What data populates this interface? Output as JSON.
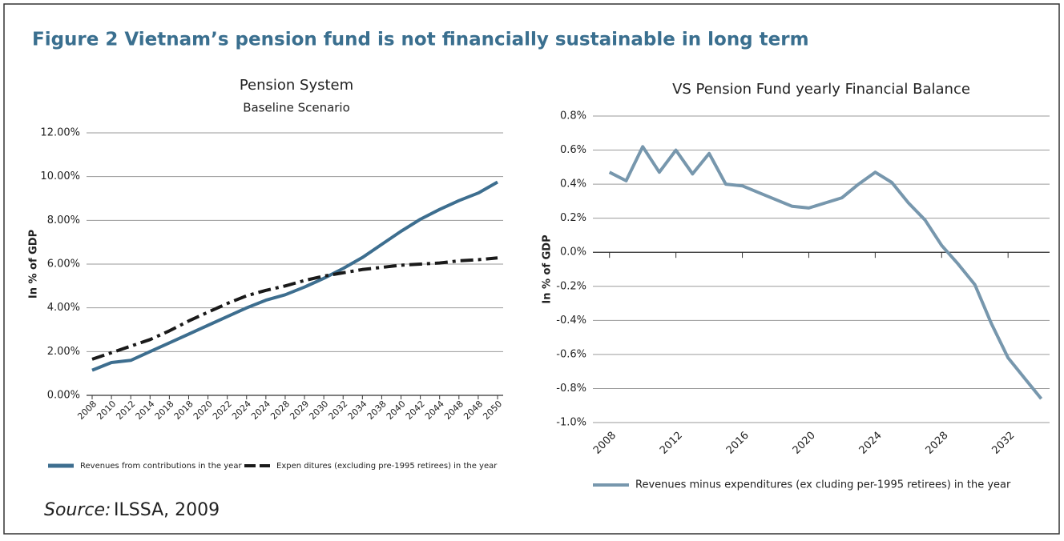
{
  "title": "Figure 2  Vietnam’s pension fund is not financially sustainable in long term",
  "source": {
    "label": "Source:",
    "text": "ILSSA, 2009"
  },
  "chart_data": [
    {
      "type": "line",
      "title": "Pension System",
      "subtitle": "Baseline Scenario",
      "y_label": "In % of GDP",
      "categories": [
        "2008",
        "2010",
        "2012",
        "2014",
        "2018",
        "2018",
        "2020",
        "2022",
        "2024",
        "2024",
        "2028",
        "2029",
        "2030",
        "2032",
        "2034",
        "2038",
        "2040",
        "2042",
        "2044",
        "2048",
        "2048",
        "2050"
      ],
      "series": [
        {
          "name": "Revenues from contributions in the year",
          "color": "#3d6e8f",
          "style": "solid",
          "values": [
            1.15,
            1.5,
            1.6,
            2.0,
            2.4,
            2.8,
            3.2,
            3.6,
            4.0,
            4.35,
            4.6,
            4.95,
            5.35,
            5.8,
            6.3,
            6.9,
            7.5,
            8.05,
            8.5,
            8.9,
            9.25,
            9.75
          ]
        },
        {
          "name": "Expen ditures (excluding pre-1995 retirees) in the year",
          "color": "#1a1a1a",
          "style": "dashdot",
          "values": [
            1.65,
            1.95,
            2.25,
            2.55,
            2.95,
            3.4,
            3.8,
            4.2,
            4.55,
            4.8,
            5.0,
            5.25,
            5.45,
            5.6,
            5.75,
            5.85,
            5.95,
            6.0,
            6.05,
            6.15,
            6.2,
            6.28
          ]
        }
      ],
      "ylim": [
        0,
        12
      ],
      "yticks": [
        {
          "value": 0,
          "label": "0.00%"
        },
        {
          "value": 2,
          "label": "2.00%"
        },
        {
          "value": 4,
          "label": "4.00%"
        },
        {
          "value": 6,
          "label": "6.00%"
        },
        {
          "value": 8,
          "label": "8.00%"
        },
        {
          "value": 10,
          "label": "10.00%"
        },
        {
          "value": 12,
          "label": "12.00%"
        }
      ],
      "grid": true
    },
    {
      "type": "line",
      "title": "VS Pension Fund yearly Financial Balance",
      "y_label": "In % of GDP",
      "x": [
        2008,
        2009,
        2010,
        2011,
        2012,
        2013,
        2014,
        2015,
        2016,
        2017,
        2018,
        2019,
        2020,
        2021,
        2022,
        2023,
        2024,
        2025,
        2026,
        2027,
        2028,
        2029,
        2030,
        2031,
        2032,
        2033,
        2034
      ],
      "series": [
        {
          "name": "Revenues minus expenditures (ex cluding per-1995 retirees) in the year",
          "color": "#7797ad",
          "style": "solid",
          "values": [
            0.47,
            0.42,
            0.62,
            0.47,
            0.6,
            0.46,
            0.58,
            0.4,
            0.39,
            0.35,
            0.31,
            0.27,
            0.26,
            0.29,
            0.32,
            0.4,
            0.47,
            0.41,
            0.29,
            0.19,
            0.04,
            -0.07,
            -0.19,
            -0.42,
            -0.62,
            -0.74,
            -0.86
          ]
        }
      ],
      "xlim": [
        2007,
        2034.5
      ],
      "xticks": [
        2008,
        2012,
        2016,
        2020,
        2024,
        2028,
        2032
      ],
      "ylim": [
        -1.0,
        0.8
      ],
      "yticks": [
        {
          "value": -1.0,
          "label": "-1.0%"
        },
        {
          "value": -0.8,
          "label": "-0.8%"
        },
        {
          "value": -0.6,
          "label": "-0.6%"
        },
        {
          "value": -0.4,
          "label": "-0.4%"
        },
        {
          "value": -0.2,
          "label": "-0.2%"
        },
        {
          "value": 0.0,
          "label": "0.0%"
        },
        {
          "value": 0.2,
          "label": "0.2%"
        },
        {
          "value": 0.4,
          "label": "0.4%"
        },
        {
          "value": 0.6,
          "label": "0.6%"
        },
        {
          "value": 0.8,
          "label": "0.8%"
        }
      ],
      "grid": true
    }
  ]
}
